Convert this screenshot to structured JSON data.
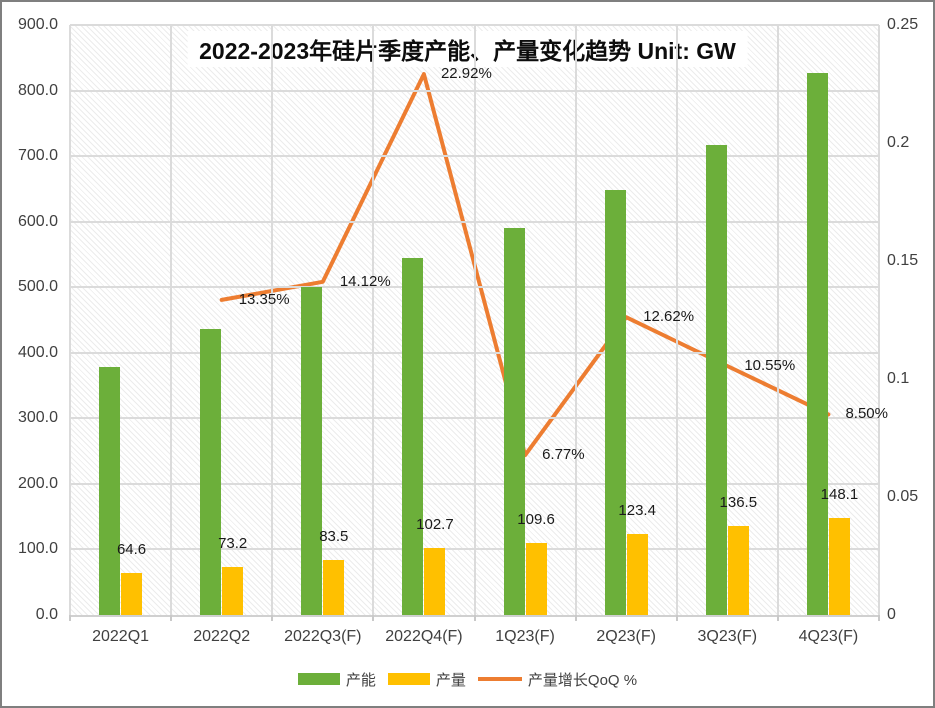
{
  "title": "2022-2023年硅片季度产能、产量变化趋势 Unit: GW",
  "colors": {
    "capacity": "#6caf3a",
    "production": "#ffc000",
    "qoq_line": "#ed7d31",
    "gridline": "#dbdbdb",
    "axis_text": "#404040",
    "chart_border": "#7f7f7f"
  },
  "left_axis": {
    "labels": [
      "0.0",
      "100.0",
      "200.0",
      "300.0",
      "400.0",
      "500.0",
      "600.0",
      "700.0",
      "800.0",
      "900.0"
    ],
    "values": [
      0,
      100,
      200,
      300,
      400,
      500,
      600,
      700,
      800,
      900
    ]
  },
  "right_axis": {
    "labels": [
      "0",
      "0.05",
      "0.1",
      "0.15",
      "0.2",
      "0.25"
    ],
    "values": [
      0,
      0.05,
      0.1,
      0.15,
      0.2,
      0.25
    ]
  },
  "chart_data": {
    "type": "combo-bar-line",
    "categories": [
      "2022Q1",
      "2022Q2",
      "2022Q3(F)",
      "2022Q4(F)",
      "1Q23(F)",
      "2Q23(F)",
      "3Q23(F)",
      "4Q23(F)"
    ],
    "series": [
      {
        "name": "产能",
        "type": "bar",
        "axis": "left",
        "color_key": "capacity",
        "values": [
          378,
          436,
          500,
          545,
          591,
          648,
          717,
          827
        ],
        "show_labels": false
      },
      {
        "name": "产量",
        "type": "bar",
        "axis": "left",
        "color_key": "production",
        "values": [
          64.6,
          73.2,
          83.5,
          102.7,
          109.6,
          123.4,
          136.5,
          148.1
        ],
        "show_labels": true,
        "labels": [
          "64.6",
          "73.2",
          "83.5",
          "102.7",
          "109.6",
          "123.4",
          "136.5",
          "148.1"
        ]
      },
      {
        "name": "产量增长QoQ %",
        "type": "line",
        "axis": "right",
        "color_key": "qoq_line",
        "values_pct": [
          null,
          13.35,
          14.12,
          22.92,
          6.77,
          12.62,
          10.55,
          8.5
        ],
        "show_labels": true,
        "labels": [
          null,
          "13.35%",
          "14.12%",
          "22.92%",
          "6.77%",
          "12.62%",
          "10.55%",
          "8.50%"
        ]
      }
    ],
    "ylim_left": [
      0,
      900
    ],
    "ylim_right": [
      0,
      0.25
    ],
    "grid": true,
    "legend_position": "bottom"
  },
  "legend": {
    "items": [
      {
        "label": "产能",
        "swatch": "bar",
        "color_key": "capacity"
      },
      {
        "label": "产量",
        "swatch": "bar",
        "color_key": "production"
      },
      {
        "label": "产量增长QoQ %",
        "swatch": "line",
        "color_key": "qoq_line"
      }
    ]
  }
}
